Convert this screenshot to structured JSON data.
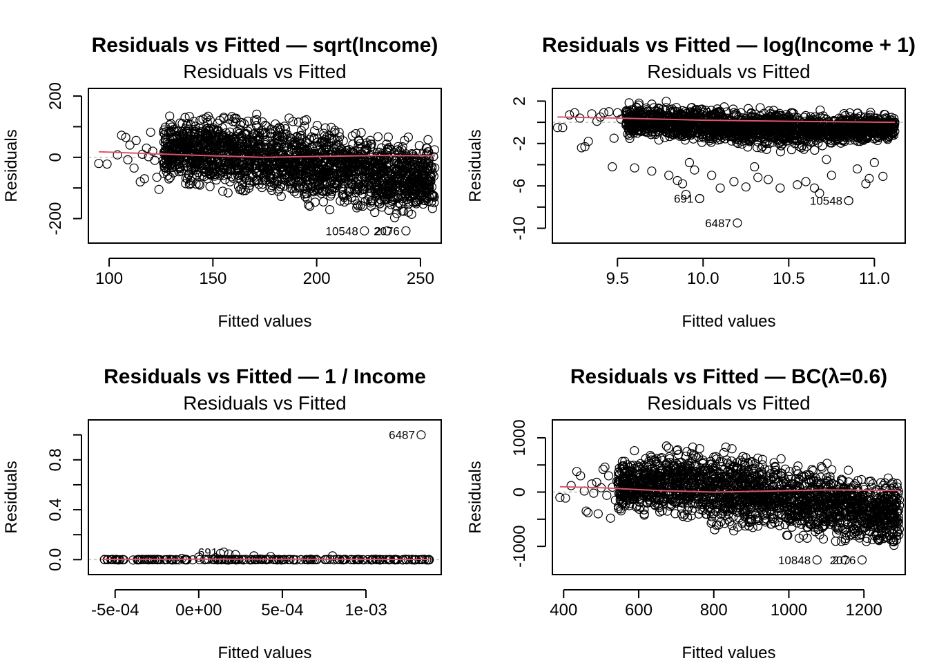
{
  "figure": {
    "background": "#ffffff",
    "point_color": "#000000",
    "smooth_color": "#DF536B",
    "reference_line_color": "#BEBEBE"
  },
  "chart_data": [
    {
      "type": "scatter",
      "title": "Residuals vs Fitted — sqrt(Income)",
      "subtitle": "Residuals vs Fitted",
      "xlabel": "Fitted values",
      "ylabel": "Residuals",
      "xlim": [
        90,
        260
      ],
      "ylim": [
        -280,
        225
      ],
      "x_ticks": [
        {
          "v": 100,
          "label": "100"
        },
        {
          "v": 150,
          "label": "150"
        },
        {
          "v": 200,
          "label": "200"
        },
        {
          "v": 250,
          "label": "250"
        }
      ],
      "y_ticks": [
        {
          "v": -200,
          "label": "-200"
        },
        {
          "v": -100,
          "label": ""
        },
        {
          "v": 0,
          "label": "0"
        },
        {
          "v": 100,
          "label": ""
        },
        {
          "v": 200,
          "label": "200"
        }
      ],
      "reference_line": 0,
      "cloud": {
        "x_range": [
          126,
          257
        ],
        "upper": [
          [
            126,
            160
          ],
          [
            150,
            175
          ],
          [
            175,
            160
          ],
          [
            200,
            140
          ],
          [
            230,
            105
          ],
          [
            257,
            85
          ]
        ],
        "lower": [
          [
            126,
            -110
          ],
          [
            150,
            -140
          ],
          [
            175,
            -165
          ],
          [
            200,
            -185
          ],
          [
            215,
            -200
          ],
          [
            240,
            -220
          ],
          [
            257,
            -235
          ]
        ],
        "n": 2000
      },
      "sparse_points": [
        [
          95,
          -20
        ],
        [
          99,
          -22
        ],
        [
          104,
          8
        ],
        [
          106,
          72
        ],
        [
          108,
          65
        ],
        [
          110,
          40
        ],
        [
          112,
          -35
        ],
        [
          113,
          55
        ],
        [
          109,
          -8
        ],
        [
          115,
          -80
        ],
        [
          117,
          -70
        ],
        [
          118,
          30
        ],
        [
          120,
          82
        ],
        [
          121,
          20
        ],
        [
          116,
          10
        ],
        [
          122,
          -10
        ],
        [
          123,
          -65
        ],
        [
          124,
          -105
        ],
        [
          119,
          2
        ]
      ],
      "smooth": [
        [
          95,
          18
        ],
        [
          120,
          12
        ],
        [
          150,
          5
        ],
        [
          175,
          0
        ],
        [
          200,
          3
        ],
        [
          230,
          6
        ],
        [
          257,
          5
        ]
      ],
      "labeled_points": [
        {
          "x": 223,
          "y": -240,
          "label": "10548"
        },
        {
          "x": 234,
          "y": -240,
          "label": "2"
        },
        {
          "x": 243,
          "y": -240,
          "label": "2076"
        }
      ]
    },
    {
      "type": "scatter",
      "title": "Residuals vs Fitted — log(Income + 1)",
      "subtitle": "Residuals vs Fitted",
      "xlabel": "Fitted values",
      "ylabel": "Residuals",
      "xlim": [
        9.12,
        11.18
      ],
      "ylim": [
        -11.4,
        3.2
      ],
      "x_ticks": [
        {
          "v": 9.5,
          "label": "9.5"
        },
        {
          "v": 10.0,
          "label": "10.0"
        },
        {
          "v": 10.5,
          "label": "10.5"
        },
        {
          "v": 11.0,
          "label": "11.0"
        }
      ],
      "y_ticks": [
        {
          "v": -10,
          "label": "-10"
        },
        {
          "v": -8,
          "label": ""
        },
        {
          "v": -6,
          "label": "-6"
        },
        {
          "v": -4,
          "label": ""
        },
        {
          "v": -2,
          "label": "-2"
        },
        {
          "v": 0,
          "label": ""
        },
        {
          "v": 2,
          "label": "2"
        }
      ],
      "reference_line": 0,
      "cloud": {
        "x_range": [
          9.55,
          11.12
        ],
        "upper": [
          [
            9.55,
            2.1
          ],
          [
            10.0,
            2.0
          ],
          [
            10.5,
            1.6
          ],
          [
            11.12,
            1.0
          ]
        ],
        "lower": [
          [
            9.55,
            -1.8
          ],
          [
            10.0,
            -2.5
          ],
          [
            10.5,
            -3.0
          ],
          [
            11.12,
            -2.0
          ]
        ],
        "n": 1800
      },
      "sparse_points": [
        [
          9.15,
          -0.5
        ],
        [
          9.18,
          -0.5
        ],
        [
          9.22,
          0.7
        ],
        [
          9.25,
          0.9
        ],
        [
          9.28,
          0.4
        ],
        [
          9.29,
          -2.4
        ],
        [
          9.31,
          -2.3
        ],
        [
          9.33,
          -1.8
        ],
        [
          9.35,
          0.8
        ],
        [
          9.38,
          0.1
        ],
        [
          9.4,
          0.5
        ],
        [
          9.42,
          0.9
        ],
        [
          9.45,
          1.0
        ],
        [
          9.48,
          -1.5
        ],
        [
          9.47,
          -4.2
        ],
        [
          9.5,
          0.9
        ],
        [
          9.52,
          0.3
        ],
        [
          9.6,
          -4.3
        ],
        [
          9.7,
          -4.6
        ],
        [
          9.8,
          -5.0
        ],
        [
          9.85,
          -5.5
        ],
        [
          9.88,
          -5.8
        ],
        [
          9.9,
          -6.8
        ],
        [
          9.95,
          -4.5
        ],
        [
          9.98,
          -7.2
        ],
        [
          10.05,
          -5.0
        ],
        [
          10.1,
          -6.2
        ],
        [
          10.18,
          -5.6
        ],
        [
          10.25,
          -6.1
        ],
        [
          10.32,
          -5.2
        ],
        [
          10.38,
          -5.4
        ],
        [
          10.45,
          -6.2
        ],
        [
          10.55,
          -5.9
        ],
        [
          10.6,
          -5.6
        ],
        [
          10.65,
          -6.2
        ],
        [
          10.68,
          -6.7
        ],
        [
          10.75,
          -5.0
        ],
        [
          10.85,
          -7.4
        ],
        [
          10.9,
          -4.4
        ],
        [
          10.95,
          -5.8
        ],
        [
          10.97,
          -5.3
        ],
        [
          11.05,
          -5.1
        ],
        [
          9.92,
          -3.8
        ],
        [
          10.3,
          -4.2
        ],
        [
          10.72,
          -3.5
        ],
        [
          11.0,
          -3.8
        ]
      ],
      "smooth": [
        [
          9.15,
          0.5
        ],
        [
          9.5,
          0.4
        ],
        [
          10.0,
          0.2
        ],
        [
          10.5,
          0.1
        ],
        [
          11.12,
          0.0
        ]
      ],
      "labeled_points": [
        {
          "x": 10.2,
          "y": -9.5,
          "label": "6487"
        },
        {
          "x": 9.98,
          "y": -7.2,
          "label": "691"
        },
        {
          "x": 10.85,
          "y": -7.4,
          "label": "10548"
        }
      ]
    },
    {
      "type": "scatter",
      "title": "Residuals vs Fitted — 1 / Income",
      "subtitle": "Residuals vs Fitted",
      "xlabel": "Fitted values",
      "ylabel": "Residuals",
      "xlim": [
        -0.00066,
        0.00145
      ],
      "ylim": [
        -0.12,
        1.12
      ],
      "x_ticks": [
        {
          "v": -0.0005,
          "label": "-5e-04"
        },
        {
          "v": 0,
          "label": "0e+00"
        },
        {
          "v": 0.0005,
          "label": "5e-04"
        },
        {
          "v": 0.001,
          "label": "1e-03"
        }
      ],
      "y_ticks": [
        {
          "v": 0,
          "label": "0.0"
        },
        {
          "v": 0.2,
          "label": ""
        },
        {
          "v": 0.4,
          "label": "0.4"
        },
        {
          "v": 0.6,
          "label": ""
        },
        {
          "v": 0.8,
          "label": "0.8"
        },
        {
          "v": 1.0,
          "label": ""
        }
      ],
      "reference_line": 0,
      "cloud": {
        "x_range": [
          -0.00058,
          0.00138
        ],
        "upper": [
          [
            -0.00058,
            0.004
          ],
          [
            0.00138,
            0.004
          ]
        ],
        "lower": [
          [
            -0.00058,
            -0.004
          ],
          [
            0.00138,
            -0.004
          ]
        ],
        "n": 220
      },
      "sparse_points": [
        [
          0.00013,
          0.05
        ],
        [
          0.00018,
          0.045
        ],
        [
          0.00022,
          0.04
        ],
        [
          0.00033,
          0.03
        ],
        [
          0.00043,
          0.025
        ],
        [
          0.0008,
          0.03
        ],
        [
          0.0,
          0.02
        ],
        [
          0.0001,
          0.015
        ],
        [
          -0.0001,
          0.01
        ]
      ],
      "smooth": [
        [
          -0.00058,
          0.002
        ],
        [
          0.0,
          0.004
        ],
        [
          0.0005,
          0.003
        ],
        [
          0.00138,
          0.002
        ]
      ],
      "labeled_points": [
        {
          "x": 0.00133,
          "y": 1.0,
          "label": "6487"
        },
        {
          "x": 0.00015,
          "y": 0.06,
          "label": "691"
        }
      ]
    },
    {
      "type": "scatter",
      "title": "Residuals vs Fitted — BC(λ=0.6)",
      "subtitle": "Residuals vs Fitted",
      "xlabel": "Fitted values",
      "ylabel": "Residuals",
      "xlim": [
        370,
        1310
      ],
      "ylim": [
        -1520,
        1330
      ],
      "x_ticks": [
        {
          "v": 400,
          "label": "400"
        },
        {
          "v": 600,
          "label": "600"
        },
        {
          "v": 800,
          "label": "800"
        },
        {
          "v": 1000,
          "label": "1000"
        },
        {
          "v": 1200,
          "label": "1200"
        }
      ],
      "y_ticks": [
        {
          "v": -1000,
          "label": "-1000"
        },
        {
          "v": -500,
          "label": ""
        },
        {
          "v": 0,
          "label": "0"
        },
        {
          "v": 500,
          "label": ""
        },
        {
          "v": 1000,
          "label": "1000"
        }
      ],
      "reference_line": 0,
      "cloud": {
        "x_range": [
          545,
          1295
        ],
        "upper": [
          [
            545,
            750
          ],
          [
            650,
            950
          ],
          [
            750,
            1000
          ],
          [
            900,
            850
          ],
          [
            1050,
            700
          ],
          [
            1150,
            550
          ],
          [
            1295,
            450
          ]
        ],
        "lower": [
          [
            545,
            -500
          ],
          [
            650,
            -650
          ],
          [
            750,
            -700
          ],
          [
            900,
            -850
          ],
          [
            1000,
            -1000
          ],
          [
            1150,
            -1100
          ],
          [
            1295,
            -1250
          ]
        ],
        "n": 2000
      },
      "sparse_points": [
        [
          390,
          -100
        ],
        [
          405,
          -110
        ],
        [
          420,
          120
        ],
        [
          435,
          380
        ],
        [
          445,
          300
        ],
        [
          455,
          20
        ],
        [
          460,
          -350
        ],
        [
          465,
          -380
        ],
        [
          475,
          150
        ],
        [
          480,
          -20
        ],
        [
          488,
          180
        ],
        [
          492,
          -400
        ],
        [
          500,
          80
        ],
        [
          505,
          420
        ],
        [
          510,
          460
        ],
        [
          515,
          -60
        ],
        [
          520,
          300
        ],
        [
          525,
          -480
        ],
        [
          530,
          90
        ],
        [
          538,
          -150
        ],
        [
          542,
          200
        ]
      ],
      "smooth": [
        [
          390,
          100
        ],
        [
          500,
          80
        ],
        [
          650,
          30
        ],
        [
          800,
          0
        ],
        [
          950,
          20
        ],
        [
          1100,
          40
        ],
        [
          1295,
          30
        ]
      ],
      "labeled_points": [
        {
          "x": 1075,
          "y": -1250,
          "label": "10848"
        },
        {
          "x": 1150,
          "y": -1250,
          "label": "2"
        },
        {
          "x": 1195,
          "y": -1250,
          "label": "2076"
        }
      ]
    }
  ]
}
